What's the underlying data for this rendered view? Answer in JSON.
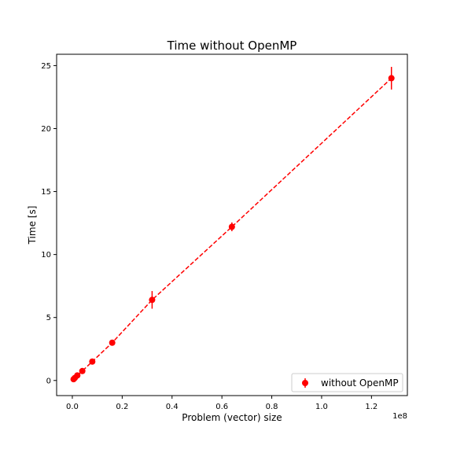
{
  "chart_data": {
    "type": "scatter",
    "title": "Time without OpenMP",
    "xlabel": "Problem (vector) size",
    "ylabel": "Time [s]",
    "x_offset_text": "1e8",
    "x_scale": 100000000,
    "xlim": [
      -0.063,
      1.344
    ],
    "ylim": [
      -1.2,
      25.9
    ],
    "x_ticks": [
      0.0,
      0.2,
      0.4,
      0.6,
      0.8,
      1.0,
      1.2
    ],
    "x_tick_labels": [
      "0.0",
      "0.2",
      "0.4",
      "0.6",
      "0.8",
      "1.0",
      "1.2"
    ],
    "y_ticks": [
      0,
      5,
      10,
      15,
      20,
      25
    ],
    "y_tick_labels": [
      "0",
      "5",
      "10",
      "15",
      "20",
      "25"
    ],
    "grid": false,
    "legend_position": "bottom-right",
    "series": [
      {
        "name": "without OpenMP",
        "color": "#ff0000",
        "line_style": "dashed",
        "marker": "circle",
        "x": [
          0.005,
          0.01,
          0.02,
          0.04,
          0.08,
          0.16,
          0.32,
          0.64,
          1.28
        ],
        "y": [
          0.1,
          0.2,
          0.4,
          0.75,
          1.5,
          3.0,
          6.4,
          12.2,
          24.0
        ],
        "yerr": [
          0.05,
          0.05,
          0.05,
          0.1,
          0.1,
          0.1,
          0.7,
          0.35,
          0.9
        ]
      }
    ]
  }
}
